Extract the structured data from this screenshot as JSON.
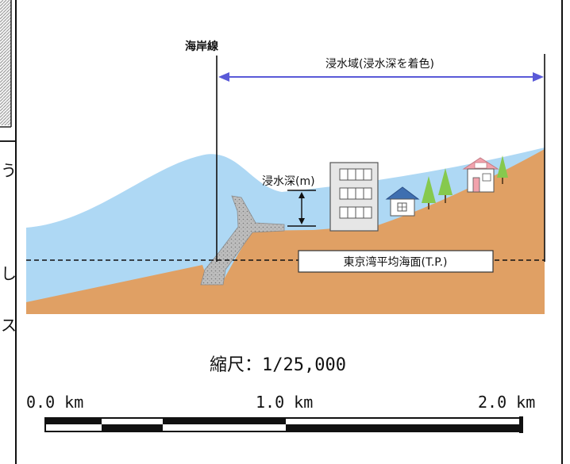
{
  "diagram": {
    "coastline_label": "海岸線",
    "inundation_area_label": "浸水域(浸水深を着色)",
    "inundation_depth_label": "浸水深(m)",
    "datum_label": "東京湾平均海面(T.P.)"
  },
  "scale": {
    "title": "縮尺：1/25,000",
    "tick_labels": [
      "0.0 km",
      "1.0 km",
      "2.0 km"
    ]
  },
  "side_fragments": [
    "う",
    "し",
    "ス"
  ],
  "colors": {
    "water": "#aed8f4",
    "land": "#e0a064",
    "arrow": "#5a5ad8",
    "sea_wall": "#b9b9b9",
    "tree": "#86c94e",
    "roof_blue": "#3f6fb0",
    "roof_pink": "#f2a3ad"
  }
}
